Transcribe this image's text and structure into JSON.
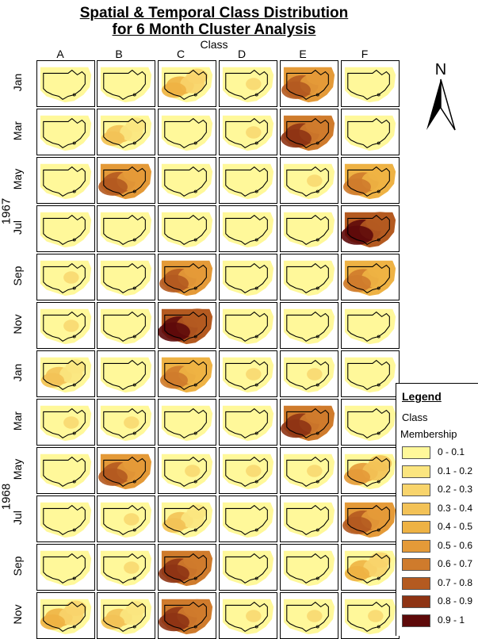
{
  "title": {
    "line1": "Spatial & Temporal Class Distribution",
    "line2": "for 6 Month Cluster Analysis"
  },
  "axis": {
    "class_label": "Class",
    "classes": [
      "A",
      "B",
      "C",
      "D",
      "E",
      "F"
    ],
    "months": [
      "Jan",
      "Mar",
      "May",
      "Jul",
      "Sep",
      "Nov",
      "Jan",
      "Mar",
      "May",
      "Jul",
      "Sep",
      "Nov"
    ],
    "years": [
      "1967",
      "1968"
    ]
  },
  "north_arrow": {
    "label": "N",
    "icon": "north-arrow-icon"
  },
  "legend": {
    "title": "Legend",
    "subtitle_line1": "Class",
    "subtitle_line2": "Membership",
    "items": [
      {
        "label": "0 - 0.1",
        "color": "#FFF89A"
      },
      {
        "label": "0.1 - 0.2",
        "color": "#FBE57F"
      },
      {
        "label": "0.2 - 0.3",
        "color": "#F8D46C"
      },
      {
        "label": "0.3 - 0.4",
        "color": "#F3C257"
      },
      {
        "label": "0.4 - 0.5",
        "color": "#EEB244"
      },
      {
        "label": "0.5 - 0.6",
        "color": "#E49A38"
      },
      {
        "label": "0.6 - 0.7",
        "color": "#CF7B2C"
      },
      {
        "label": "0.7 - 0.8",
        "color": "#B45A20"
      },
      {
        "label": "0.8 - 0.9",
        "color": "#8E3414"
      },
      {
        "label": "0.9 - 1",
        "color": "#5E0A0A"
      }
    ]
  },
  "maps": [
    [
      1,
      0,
      4,
      2,
      7,
      0
    ],
    [
      0,
      3,
      1,
      2,
      8,
      0
    ],
    [
      1,
      7,
      1,
      1,
      2,
      6
    ],
    [
      0,
      1,
      1,
      0,
      1,
      9
    ],
    [
      2,
      1,
      7,
      1,
      1,
      6
    ],
    [
      2,
      1,
      9,
      1,
      1,
      1
    ],
    [
      3,
      1,
      6,
      2,
      2,
      1
    ],
    [
      2,
      2,
      1,
      1,
      8,
      1
    ],
    [
      1,
      7,
      2,
      2,
      2,
      5
    ],
    [
      1,
      2,
      3,
      1,
      1,
      7
    ],
    [
      1,
      2,
      8,
      1,
      1,
      4
    ],
    [
      4,
      3,
      8,
      2,
      2,
      2
    ]
  ]
}
